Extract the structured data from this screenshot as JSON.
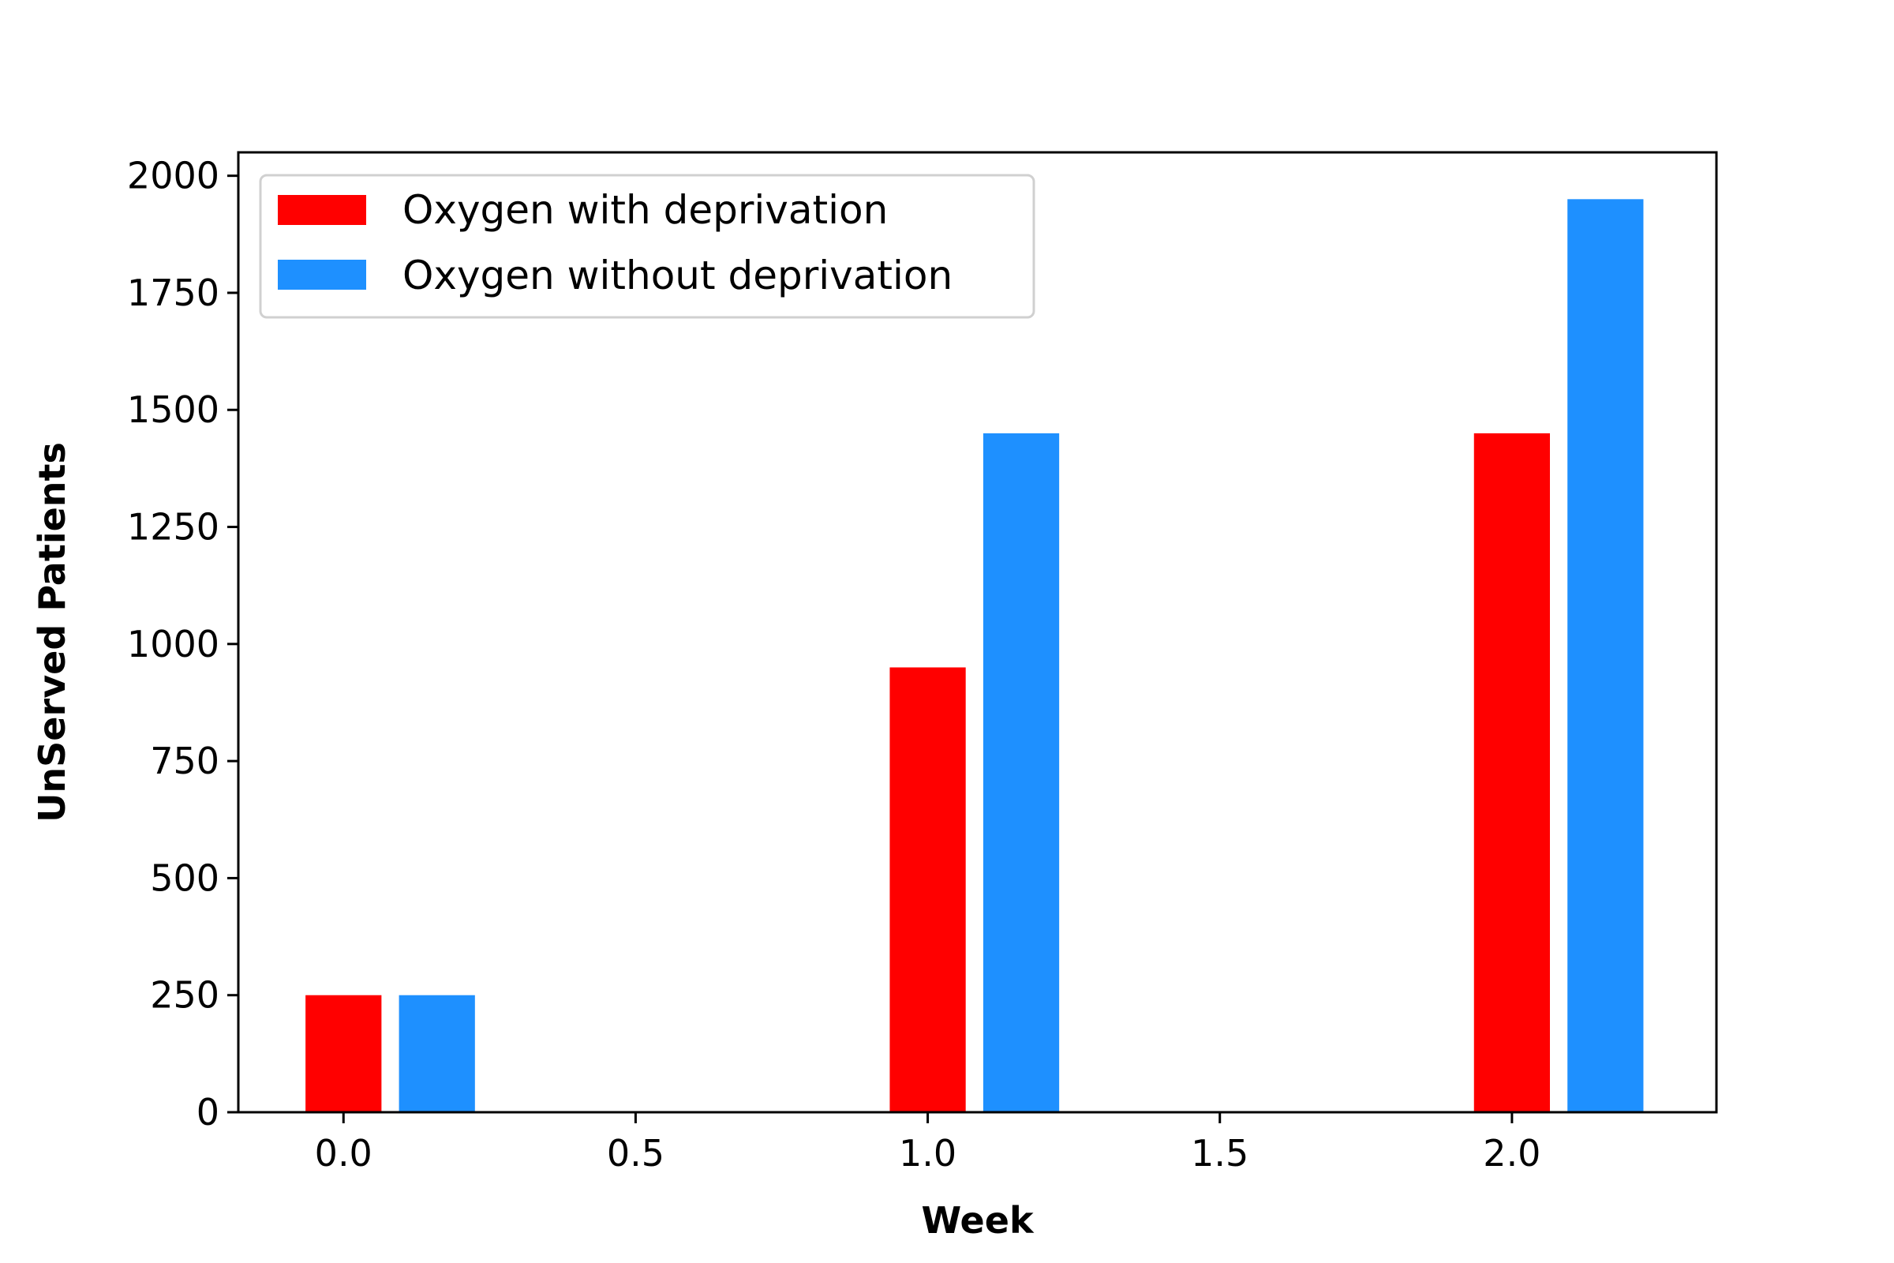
{
  "chart_data": {
    "type": "bar",
    "title": "",
    "xlabel": "Week",
    "ylabel": "UnServed Patients",
    "xlim": [
      -0.18,
      2.35
    ],
    "ylim": [
      0,
      2050
    ],
    "xticks": [
      "0.0",
      "0.5",
      "1.0",
      "1.5",
      "2.0"
    ],
    "yticks": [
      "0",
      "250",
      "500",
      "750",
      "1000",
      "1250",
      "1500",
      "1750",
      "2000"
    ],
    "x": [
      0.0,
      1.0,
      2.0
    ],
    "bar_width": 0.13,
    "grid": false,
    "legend_position": "top-left",
    "series": [
      {
        "name": "Oxygen with deprivation",
        "color": "#ff0000",
        "values": [
          250,
          950,
          1450
        ],
        "offset": 0.0
      },
      {
        "name": "Oxygen without deprivation",
        "color": "#1e90ff",
        "values": [
          250,
          1450,
          1950
        ],
        "offset": 0.16
      }
    ]
  }
}
